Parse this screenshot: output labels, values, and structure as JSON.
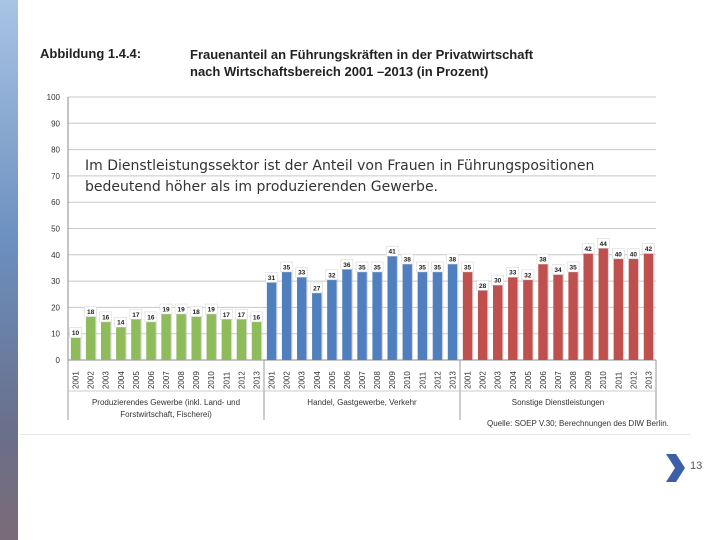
{
  "slide": {
    "figure_label": "Abbildung 1.4.4:",
    "title_line1": "Frauenanteil an Führungskräften in der Privatwirtschaft",
    "title_line2": "nach Wirtschaftsbereich 2001 –2013 (in Prozent)",
    "overlay_line1": "Im Dienstleistungssektor ist der Anteil von Frauen in Führungspositionen",
    "overlay_line2": "bedeutend höher als im produzierenden Gewerbe.",
    "source": "Quelle: SOEP V.30; Berechnungen des DIW Berlin.",
    "page_number": "13",
    "nav_icon": "chevron-right-icon"
  },
  "chart_data": {
    "type": "bar",
    "title": "Frauenanteil an Führungskräften in der Privatwirtschaft nach Wirtschaftsbereich 2001 –2013 (in Prozent)",
    "xlabel": "",
    "ylabel": "",
    "ylim": [
      0,
      100
    ],
    "yticks": [
      0,
      10,
      20,
      30,
      40,
      50,
      60,
      70,
      80,
      90,
      100
    ],
    "grid": true,
    "years": [
      "2001",
      "2002",
      "2003",
      "2004",
      "2005",
      "2006",
      "2007",
      "2008",
      "2009",
      "2010",
      "2011",
      "2012",
      "2013"
    ],
    "groups": [
      {
        "label_line1": "Produzierendes Gewerbe (inkl. Land- und",
        "label_line2": "Forstwirtschaft, Fischerei)",
        "color": "#8fbc5a",
        "values": [
          10,
          18,
          16,
          14,
          17,
          16,
          19,
          19,
          18,
          19,
          17,
          17,
          16
        ]
      },
      {
        "label_line1": "Handel, Gastgewerbe, Verkehr",
        "label_line2": "",
        "color": "#4f7fbf",
        "values": [
          31,
          35,
          33,
          27,
          32,
          36,
          35,
          35,
          41,
          38,
          35,
          35,
          38
        ]
      },
      {
        "label_line1": "Sonstige Dienstleistungen",
        "label_line2": "",
        "color": "#c0504d",
        "values": [
          35,
          28,
          30,
          33,
          32,
          38,
          34,
          35,
          42,
          44,
          40,
          40,
          42
        ]
      }
    ]
  }
}
